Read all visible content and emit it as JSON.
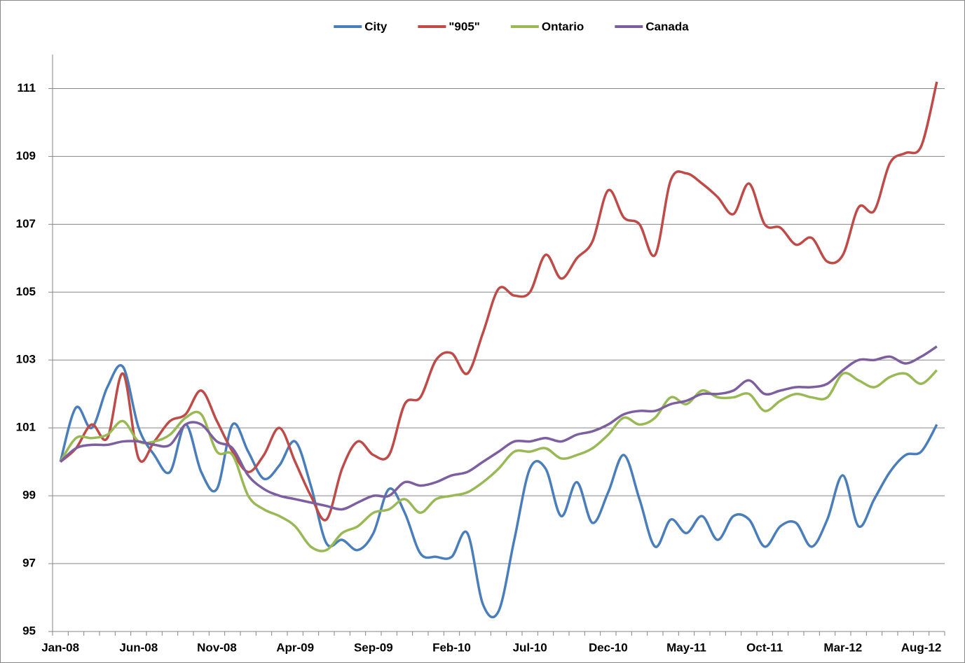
{
  "chart_data": {
    "type": "line",
    "categories": [
      "Jan-08",
      null,
      null,
      null,
      null,
      "Jun-08",
      null,
      null,
      null,
      null,
      "Nov-08",
      null,
      null,
      null,
      null,
      "Apr-09",
      null,
      null,
      null,
      null,
      "Sep-09",
      null,
      null,
      null,
      null,
      "Feb-10",
      null,
      null,
      null,
      null,
      "Jul-10",
      null,
      null,
      null,
      null,
      "Dec-10",
      null,
      null,
      null,
      null,
      "May-11",
      null,
      null,
      null,
      null,
      "Oct-11",
      null,
      null,
      null,
      null,
      "Mar-12",
      null,
      null,
      null,
      null,
      "Aug-12",
      null
    ],
    "series": [
      {
        "name": "City",
        "color": "#4a7ebb",
        "values": [
          100,
          101.6,
          101.0,
          102.2,
          102.8,
          101.0,
          100.2,
          99.7,
          101.1,
          99.7,
          99.2,
          101.1,
          100.3,
          99.5,
          99.9,
          100.6,
          99.3,
          97.6,
          97.7,
          97.4,
          97.9,
          99.2,
          98.5,
          97.3,
          97.2,
          97.2,
          97.9,
          95.8,
          95.6,
          97.7,
          99.8,
          99.8,
          98.4,
          99.4,
          98.2,
          99.1,
          100.2,
          98.9,
          97.5,
          98.3,
          97.9,
          98.4,
          97.7,
          98.4,
          98.3,
          97.5,
          98.1,
          98.2,
          97.5,
          98.3,
          99.6,
          98.1,
          98.9,
          99.7,
          100.2,
          100.3,
          101.1
        ]
      },
      {
        "name": "\"905\"",
        "color": "#be4b48",
        "values": [
          100,
          100.4,
          101.1,
          100.7,
          102.6,
          100.1,
          100.6,
          101.2,
          101.4,
          102.1,
          101.2,
          100.3,
          99.7,
          100.2,
          101.0,
          100.0,
          99.0,
          98.3,
          99.8,
          100.6,
          100.2,
          100.2,
          101.7,
          101.9,
          103.0,
          103.2,
          102.6,
          103.8,
          105.1,
          104.9,
          105.0,
          106.1,
          105.4,
          106.0,
          106.5,
          108.0,
          107.2,
          107.0,
          106.1,
          108.3,
          108.5,
          108.2,
          107.8,
          107.3,
          108.2,
          107.0,
          106.9,
          106.4,
          106.6,
          105.9,
          106.1,
          107.5,
          107.4,
          108.8,
          109.1,
          109.3,
          111.2
        ]
      },
      {
        "name": "Ontario",
        "color": "#98b954",
        "values": [
          100,
          100.7,
          100.7,
          100.8,
          101.2,
          100.6,
          100.6,
          100.8,
          101.3,
          101.4,
          100.3,
          100.2,
          99.0,
          98.6,
          98.4,
          98.1,
          97.5,
          97.4,
          97.9,
          98.1,
          98.5,
          98.6,
          98.9,
          98.5,
          98.9,
          99.0,
          99.1,
          99.4,
          99.8,
          100.3,
          100.3,
          100.4,
          100.1,
          100.2,
          100.4,
          100.8,
          101.3,
          101.1,
          101.3,
          101.9,
          101.7,
          102.1,
          101.9,
          101.9,
          102.0,
          101.5,
          101.8,
          102.0,
          101.9,
          101.9,
          102.6,
          102.4,
          102.2,
          102.5,
          102.6,
          102.3,
          102.7
        ]
      },
      {
        "name": "Canada",
        "color": "#7d5fa0",
        "values": [
          100,
          100.4,
          100.5,
          100.5,
          100.6,
          100.6,
          100.5,
          100.5,
          101.1,
          101.1,
          100.6,
          100.4,
          99.6,
          99.2,
          99.0,
          98.9,
          98.8,
          98.7,
          98.6,
          98.8,
          99.0,
          99.0,
          99.4,
          99.3,
          99.4,
          99.6,
          99.7,
          100.0,
          100.3,
          100.6,
          100.6,
          100.7,
          100.6,
          100.8,
          100.9,
          101.1,
          101.4,
          101.5,
          101.5,
          101.7,
          101.8,
          102.0,
          102.0,
          102.1,
          102.4,
          102.0,
          102.1,
          102.2,
          102.2,
          102.3,
          102.7,
          103.0,
          103.0,
          103.1,
          102.9,
          103.1,
          103.4
        ]
      }
    ],
    "ylim": [
      95,
      112
    ],
    "yticks": [
      95,
      97,
      99,
      101,
      103,
      105,
      107,
      109,
      111
    ],
    "grid": true,
    "legend": "top"
  }
}
